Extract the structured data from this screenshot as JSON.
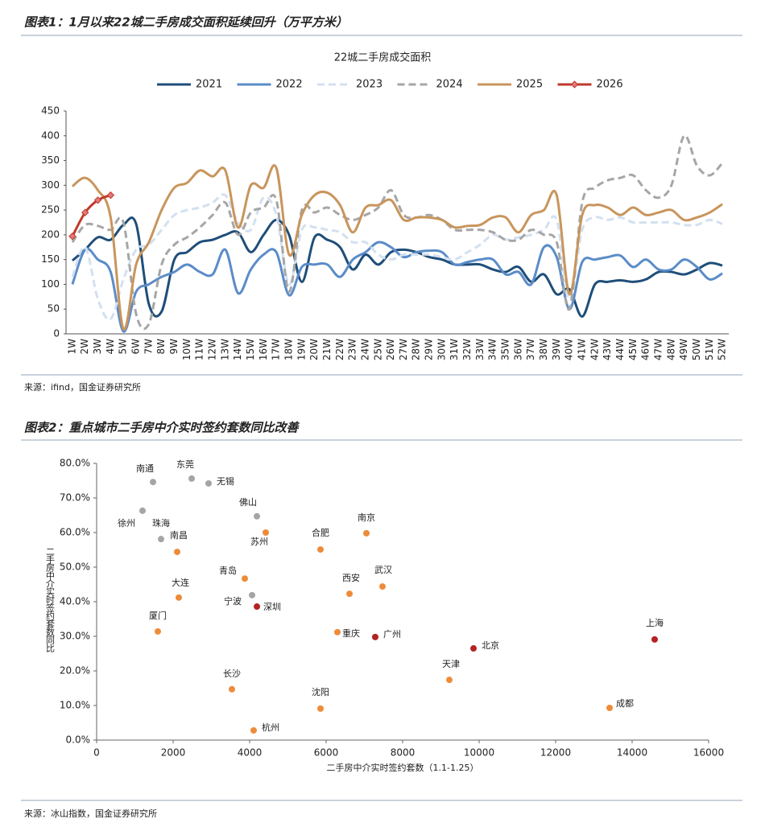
{
  "chart_data": [
    {
      "type": "line",
      "caption": "图表1：1月以来22城二手房成交面积延续回升（万平方米）",
      "title": "22城二手房成交面积",
      "source": "来源：ifind，国金证券研究所",
      "categories": [
        "1W",
        "2W",
        "3W",
        "4W",
        "5W",
        "6W",
        "7W",
        "8W",
        "9W",
        "10W",
        "11W",
        "12W",
        "13W",
        "14W",
        "15W",
        "16W",
        "17W",
        "18W",
        "19W",
        "20W",
        "21W",
        "22W",
        "23W",
        "24W",
        "25W",
        "26W",
        "27W",
        "28W",
        "29W",
        "30W",
        "31W",
        "32W",
        "33W",
        "34W",
        "35W",
        "36W",
        "37W",
        "38W",
        "39W",
        "40W",
        "41W",
        "42W",
        "43W",
        "44W",
        "45W",
        "46W",
        "47W",
        "48W",
        "49W",
        "50W",
        "51W",
        "52W"
      ],
      "ylim": [
        0,
        450
      ],
      "yticks": [
        0,
        50,
        100,
        150,
        200,
        250,
        300,
        350,
        400,
        450
      ],
      "grid": false,
      "legend": "top",
      "series": [
        {
          "name": "2021",
          "color": "#1f4e79",
          "dashed": false,
          "values": [
            148,
            170,
            195,
            190,
            220,
            222,
            60,
            45,
            150,
            165,
            185,
            190,
            200,
            205,
            165,
            200,
            230,
            200,
            105,
            195,
            190,
            175,
            130,
            160,
            140,
            165,
            170,
            165,
            155,
            150,
            140,
            140,
            140,
            130,
            125,
            135,
            105,
            120,
            80,
            90,
            35,
            100,
            105,
            108,
            105,
            110,
            125,
            125,
            120,
            130,
            143,
            138
          ]
        },
        {
          "name": "2022",
          "color": "#5b8cc8",
          "dashed": false,
          "values": [
            100,
            170,
            150,
            125,
            5,
            85,
            100,
            115,
            125,
            140,
            125,
            120,
            170,
            82,
            130,
            160,
            165,
            78,
            135,
            140,
            140,
            115,
            150,
            165,
            185,
            175,
            155,
            165,
            168,
            165,
            140,
            145,
            150,
            150,
            120,
            125,
            100,
            175,
            155,
            50,
            145,
            150,
            155,
            158,
            135,
            150,
            130,
            130,
            150,
            135,
            110,
            122
          ]
        },
        {
          "name": "2023",
          "color": "#d3e0f0",
          "dashed": true,
          "values": [
            115,
            175,
            70,
            30,
            110,
            170,
            180,
            210,
            240,
            250,
            255,
            265,
            280,
            225,
            210,
            275,
            240,
            100,
            210,
            215,
            210,
            205,
            185,
            185,
            160,
            150,
            160,
            160,
            160,
            155,
            150,
            165,
            180,
            200,
            190,
            195,
            200,
            210,
            230,
            70,
            210,
            235,
            230,
            235,
            225,
            225,
            225,
            225,
            220,
            220,
            230,
            222
          ]
        },
        {
          "name": "2024",
          "color": "#a6a6a6",
          "dashed": true,
          "values": [
            185,
            220,
            218,
            210,
            225,
            40,
            20,
            140,
            180,
            195,
            215,
            240,
            265,
            200,
            245,
            255,
            270,
            85,
            250,
            245,
            255,
            240,
            230,
            240,
            255,
            290,
            240,
            235,
            240,
            230,
            210,
            210,
            210,
            205,
            190,
            190,
            210,
            200,
            185,
            50,
            265,
            295,
            310,
            315,
            320,
            290,
            275,
            300,
            400,
            340,
            320,
            345
          ]
        },
        {
          "name": "2025",
          "color": "#c8955c",
          "dashed": false,
          "values": [
            298,
            315,
            290,
            235,
            10,
            140,
            185,
            250,
            295,
            305,
            330,
            318,
            330,
            215,
            300,
            295,
            335,
            160,
            240,
            280,
            285,
            260,
            205,
            255,
            260,
            270,
            230,
            235,
            235,
            230,
            215,
            218,
            220,
            235,
            235,
            205,
            240,
            250,
            280,
            80,
            240,
            260,
            255,
            240,
            255,
            240,
            245,
            250,
            230,
            235,
            245,
            262
          ]
        },
        {
          "name": "2026",
          "color": "#c0392b",
          "dashed": false,
          "markers": true,
          "values": [
            197,
            245,
            270,
            280,
            null,
            null,
            null,
            null,
            null,
            null,
            null,
            null,
            null,
            null,
            null,
            null,
            null,
            null,
            null,
            null,
            null,
            null,
            null,
            null,
            null,
            null,
            null,
            null,
            null,
            null,
            null,
            null,
            null,
            null,
            null,
            null,
            null,
            null,
            null,
            null,
            null,
            null,
            null,
            null,
            null,
            null,
            null,
            null,
            null,
            null,
            null,
            null
          ]
        }
      ]
    },
    {
      "type": "scatter",
      "caption": "图表2：重点城市二手房中介实时签约套数同比改善",
      "source": "来源：冰山指数，国金证券研究所",
      "x_label": "二手房中介实时签约套数（1.1-1.25）",
      "y_label": "二手房中介实时签约套数同比",
      "xlim": [
        0,
        16000
      ],
      "xticks": [
        0,
        2000,
        4000,
        6000,
        8000,
        10000,
        12000,
        14000,
        16000
      ],
      "ylim": [
        0,
        80
      ],
      "yticks": [
        {
          "value": 0,
          "label": "0.0%"
        },
        {
          "value": 10,
          "label": "10.0%"
        },
        {
          "value": 20,
          "label": "20.0%"
        },
        {
          "value": 30,
          "label": "30.0%"
        },
        {
          "value": 40,
          "label": "40.0%"
        },
        {
          "value": 50,
          "label": "50.0%"
        },
        {
          "value": 60,
          "label": "60.0%"
        },
        {
          "value": 70,
          "label": "70.0%"
        },
        {
          "value": 80,
          "label": "80.0%"
        }
      ],
      "points": [
        {
          "label": "南通",
          "x": 1474,
          "y": 74.6,
          "color": "#a5a5a5"
        },
        {
          "label": "东莞",
          "x": 2484,
          "y": 75.6,
          "color": "#a5a5a5"
        },
        {
          "label": "无锡",
          "x": 2926,
          "y": 74.2,
          "color": "#a5a5a5"
        },
        {
          "label": "徐州",
          "x": 1200,
          "y": 66.3,
          "color": "#a5a5a5"
        },
        {
          "label": "珠海",
          "x": 1684,
          "y": 58.1,
          "color": "#a5a5a5"
        },
        {
          "label": "南昌",
          "x": 2105,
          "y": 54.4,
          "color": "#ed8c3a"
        },
        {
          "label": "佛山",
          "x": 4190,
          "y": 64.7,
          "color": "#a5a5a5"
        },
        {
          "label": "苏州",
          "x": 4421,
          "y": 60.0,
          "color": "#ed8c3a"
        },
        {
          "label": "合肥",
          "x": 5853,
          "y": 55.1,
          "color": "#ed8c3a"
        },
        {
          "label": "南京",
          "x": 7053,
          "y": 59.8,
          "color": "#ed8c3a"
        },
        {
          "label": "青岛",
          "x": 3874,
          "y": 46.7,
          "color": "#ed8c3a"
        },
        {
          "label": "宁波",
          "x": 4063,
          "y": 41.9,
          "color": "#a5a5a5"
        },
        {
          "label": "深圳",
          "x": 4190,
          "y": 38.6,
          "color": "#b42222"
        },
        {
          "label": "大连",
          "x": 2147,
          "y": 41.2,
          "color": "#ed8c3a"
        },
        {
          "label": "西安",
          "x": 6611,
          "y": 42.3,
          "color": "#ed8c3a"
        },
        {
          "label": "武汉",
          "x": 7474,
          "y": 44.4,
          "color": "#ed8c3a"
        },
        {
          "label": "厦门",
          "x": 1600,
          "y": 31.4,
          "color": "#ed8c3a"
        },
        {
          "label": "重庆",
          "x": 6295,
          "y": 31.2,
          "color": "#ed8c3a"
        },
        {
          "label": "广州",
          "x": 7284,
          "y": 29.8,
          "color": "#b42222"
        },
        {
          "label": "北京",
          "x": 9853,
          "y": 26.5,
          "color": "#b42222"
        },
        {
          "label": "上海",
          "x": 14589,
          "y": 29.1,
          "color": "#b42222"
        },
        {
          "label": "天津",
          "x": 9221,
          "y": 17.4,
          "color": "#ed8c3a"
        },
        {
          "label": "长沙",
          "x": 3537,
          "y": 14.7,
          "color": "#ed8c3a"
        },
        {
          "label": "沈阳",
          "x": 5853,
          "y": 9.1,
          "color": "#ed8c3a"
        },
        {
          "label": "成都",
          "x": 13411,
          "y": 9.3,
          "color": "#ed8c3a"
        },
        {
          "label": "杭州",
          "x": 4105,
          "y": 2.8,
          "color": "#ed8c3a"
        }
      ]
    }
  ]
}
